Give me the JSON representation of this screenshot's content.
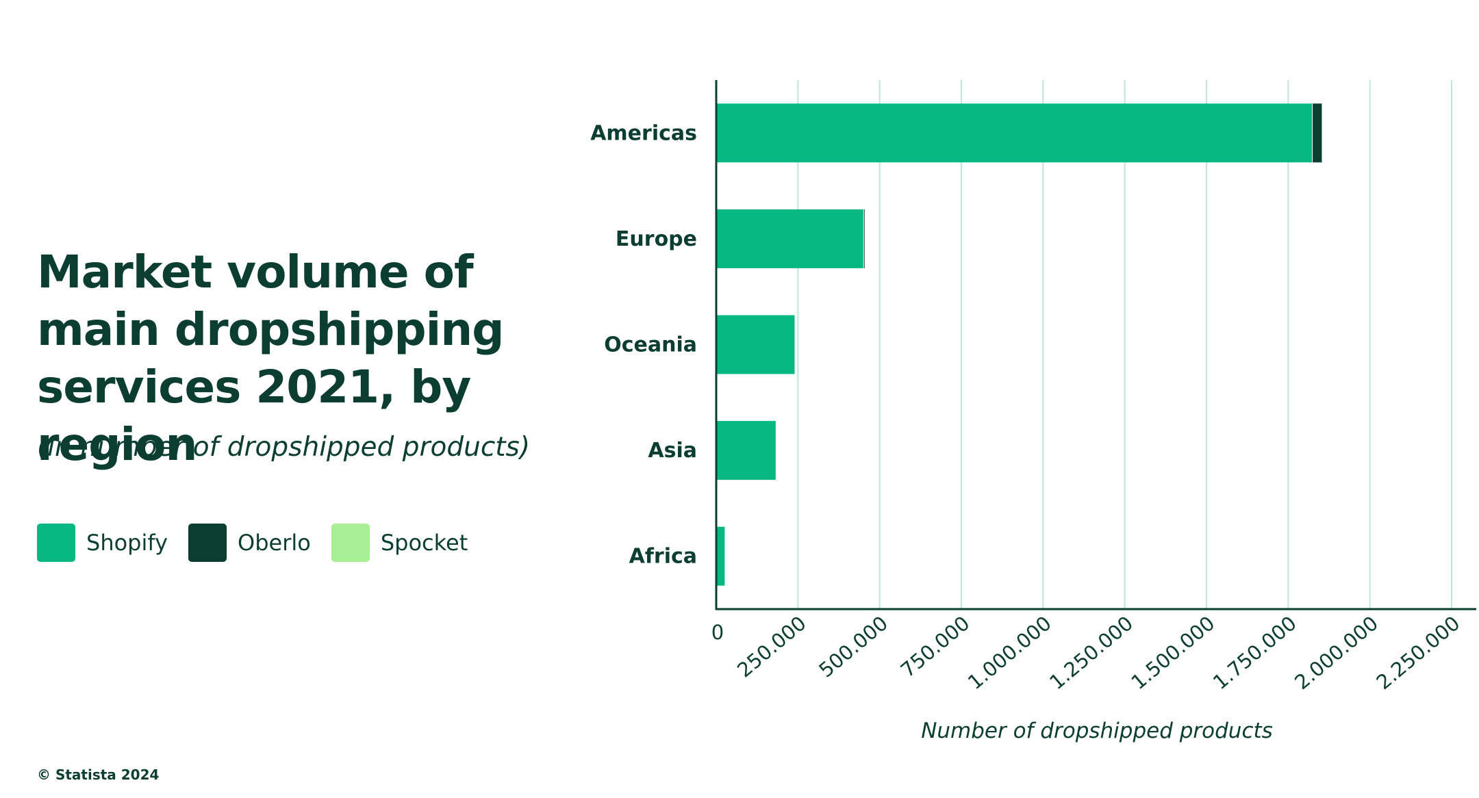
{
  "chart_data": {
    "type": "bar",
    "orientation": "horizontal",
    "stacked": true,
    "title": "Market volume of main dropshipping services 2021, by region",
    "subtitle": "(in number of dropshipped products)",
    "categories": [
      "Americas",
      "Europe",
      "Oceania",
      "Asia",
      "Africa"
    ],
    "series": [
      {
        "name": "Shopify",
        "color": "#08b882",
        "values": [
          1825000,
          452000,
          242000,
          184000,
          28000
        ]
      },
      {
        "name": "Oberlo",
        "color": "#0b3d31",
        "values": [
          30000,
          3000,
          0,
          0,
          0
        ]
      },
      {
        "name": "Spocket",
        "color": "#a8ee94",
        "values": [
          0,
          0,
          0,
          0,
          0
        ]
      }
    ],
    "xlabel": "Number of dropshipped products",
    "ylabel": "",
    "xlim": [
      0,
      2250000
    ],
    "xticks": [
      0,
      250000,
      500000,
      750000,
      1000000,
      1250000,
      1500000,
      1750000,
      2000000,
      2250000
    ],
    "xtick_labels": [
      "0",
      "250.000",
      "500.000",
      "750.000",
      "1.000.000",
      "1.250.000",
      "1.500.000",
      "1.750.000",
      "2.000.000",
      "2.250.000"
    ],
    "grid": true,
    "legend": "left"
  },
  "source": {
    "copyright": "© Statista 2024"
  },
  "colors": {
    "text": "#0b3d31",
    "grid": "#bfe6d6",
    "axis": "#0b3d31"
  }
}
